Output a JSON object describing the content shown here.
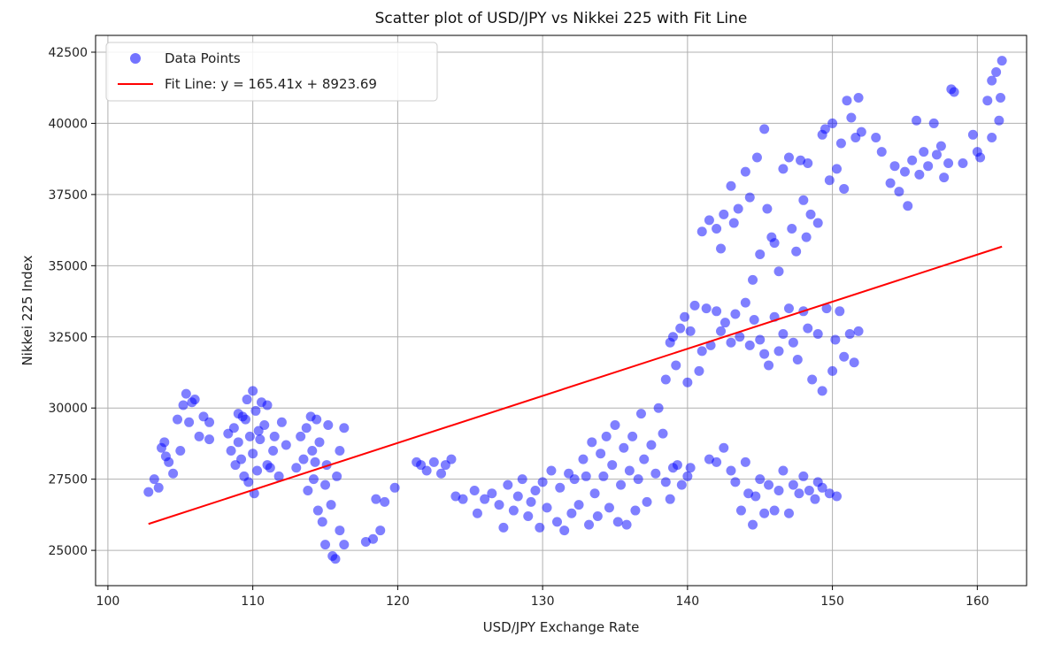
{
  "chart_data": {
    "type": "scatter",
    "title": "Scatter plot of USD/JPY vs Nikkei 225 with Fit Line",
    "xlabel": "USD/JPY Exchange Rate",
    "ylabel": "Nikkei 225 Index",
    "xlim": [
      99.15,
      163.4
    ],
    "ylim": [
      23760,
      43090
    ],
    "xticks": [
      100,
      110,
      120,
      130,
      140,
      150,
      160
    ],
    "yticks": [
      25000,
      27500,
      30000,
      32500,
      35000,
      37500,
      40000,
      42500
    ],
    "grid": true,
    "legend": {
      "placement": "top-left",
      "entries": [
        "Data Points",
        "Fit Line: y = 165.41x + 8923.69"
      ]
    },
    "colors": {
      "points": "#0000ff",
      "fit_line": "#ff0000"
    },
    "fit_line": {
      "slope": 165.41,
      "intercept": 8923.69,
      "x_range": [
        102.8,
        161.7
      ]
    },
    "series": [
      {
        "name": "Data Points",
        "points": [
          [
            102.8,
            27050
          ],
          [
            103.2,
            27500
          ],
          [
            103.5,
            27200
          ],
          [
            103.7,
            28600
          ],
          [
            103.9,
            28800
          ],
          [
            104,
            28300
          ],
          [
            104.2,
            28100
          ],
          [
            104.5,
            27700
          ],
          [
            104.8,
            29600
          ],
          [
            105,
            28500
          ],
          [
            105.2,
            30100
          ],
          [
            105.4,
            30500
          ],
          [
            105.6,
            29500
          ],
          [
            105.8,
            30200
          ],
          [
            106,
            30300
          ],
          [
            106.3,
            29000
          ],
          [
            106.6,
            29700
          ],
          [
            107,
            29500
          ],
          [
            107,
            28900
          ],
          [
            108.3,
            29100
          ],
          [
            108.5,
            28500
          ],
          [
            108.7,
            29300
          ],
          [
            109,
            28800
          ],
          [
            109,
            29800
          ],
          [
            109.2,
            28200
          ],
          [
            109.4,
            27600
          ],
          [
            109.5,
            29600
          ],
          [
            109.6,
            30300
          ],
          [
            109.8,
            29000
          ],
          [
            110,
            30600
          ],
          [
            110,
            28400
          ],
          [
            110.1,
            27000
          ],
          [
            110.2,
            29900
          ],
          [
            110.3,
            27800
          ],
          [
            110.5,
            28900
          ],
          [
            110.6,
            30200
          ],
          [
            110.8,
            29400
          ],
          [
            111,
            28000
          ],
          [
            111,
            30100
          ],
          [
            111.2,
            27900
          ],
          [
            111.5,
            29000
          ],
          [
            111.8,
            27600
          ],
          [
            112,
            29500
          ],
          [
            112.3,
            28700
          ],
          [
            109.3,
            29700
          ],
          [
            108.8,
            28000
          ],
          [
            110.4,
            29200
          ],
          [
            109.7,
            27400
          ],
          [
            111.4,
            28500
          ],
          [
            113,
            27900
          ],
          [
            113.3,
            29000
          ],
          [
            113.5,
            28200
          ],
          [
            113.7,
            29300
          ],
          [
            113.8,
            27100
          ],
          [
            114,
            29700
          ],
          [
            114.1,
            28500
          ],
          [
            114.2,
            27500
          ],
          [
            114.4,
            29600
          ],
          [
            114.5,
            26400
          ],
          [
            114.6,
            28800
          ],
          [
            114.8,
            26000
          ],
          [
            115,
            27300
          ],
          [
            115,
            25200
          ],
          [
            115.2,
            29400
          ],
          [
            115.4,
            26600
          ],
          [
            115.5,
            24800
          ],
          [
            115.7,
            24700
          ],
          [
            115.8,
            27600
          ],
          [
            116,
            25700
          ],
          [
            116,
            28500
          ],
          [
            116.3,
            25200
          ],
          [
            116.3,
            29300
          ],
          [
            114.3,
            28100
          ],
          [
            115.1,
            28000
          ],
          [
            117.8,
            25300
          ],
          [
            118.3,
            25400
          ],
          [
            118.5,
            26800
          ],
          [
            118.8,
            25700
          ],
          [
            119.1,
            26700
          ],
          [
            119.8,
            27200
          ],
          [
            121.3,
            28100
          ],
          [
            121.6,
            28000
          ],
          [
            122,
            27800
          ],
          [
            122.5,
            28100
          ],
          [
            123,
            27700
          ],
          [
            123.3,
            28000
          ],
          [
            123.7,
            28200
          ],
          [
            124,
            26900
          ],
          [
            124.5,
            26800
          ],
          [
            125.3,
            27100
          ],
          [
            125.5,
            26300
          ],
          [
            126,
            26800
          ],
          [
            126.5,
            27000
          ],
          [
            127,
            26600
          ],
          [
            127.3,
            25800
          ],
          [
            127.6,
            27300
          ],
          [
            128,
            26400
          ],
          [
            128.3,
            26900
          ],
          [
            128.6,
            27500
          ],
          [
            129,
            26200
          ],
          [
            129.2,
            26700
          ],
          [
            129.5,
            27100
          ],
          [
            129.8,
            25800
          ],
          [
            130,
            27400
          ],
          [
            130.3,
            26500
          ],
          [
            130.6,
            27800
          ],
          [
            131,
            26000
          ],
          [
            131.2,
            27200
          ],
          [
            131.5,
            25700
          ],
          [
            131.8,
            27700
          ],
          [
            132,
            26300
          ],
          [
            132.2,
            27500
          ],
          [
            132.5,
            26600
          ],
          [
            132.8,
            28200
          ],
          [
            133,
            27600
          ],
          [
            133.2,
            25900
          ],
          [
            133.4,
            28800
          ],
          [
            133.6,
            27000
          ],
          [
            133.8,
            26200
          ],
          [
            134,
            28400
          ],
          [
            134.2,
            27600
          ],
          [
            134.4,
            29000
          ],
          [
            134.6,
            26500
          ],
          [
            134.8,
            28000
          ],
          [
            135,
            29400
          ],
          [
            135.2,
            26000
          ],
          [
            135.4,
            27300
          ],
          [
            135.6,
            28600
          ],
          [
            135.8,
            25900
          ],
          [
            136,
            27800
          ],
          [
            136.2,
            29000
          ],
          [
            136.4,
            26400
          ],
          [
            136.6,
            27500
          ],
          [
            136.8,
            29800
          ],
          [
            137,
            28200
          ],
          [
            137.2,
            26700
          ],
          [
            137.5,
            28700
          ],
          [
            137.8,
            27700
          ],
          [
            138,
            30000
          ],
          [
            138.3,
            29100
          ],
          [
            138.5,
            27400
          ],
          [
            138.8,
            26800
          ],
          [
            139,
            27900
          ],
          [
            139.3,
            28000
          ],
          [
            139.6,
            27300
          ],
          [
            140,
            27600
          ],
          [
            140.2,
            27900
          ],
          [
            138.5,
            31000
          ],
          [
            138.8,
            32300
          ],
          [
            139,
            32500
          ],
          [
            139.2,
            31500
          ],
          [
            139.5,
            32800
          ],
          [
            139.8,
            33200
          ],
          [
            140,
            30900
          ],
          [
            140.2,
            32700
          ],
          [
            140.5,
            33600
          ],
          [
            140.8,
            31300
          ],
          [
            141,
            32000
          ],
          [
            141.3,
            33500
          ],
          [
            141.6,
            32200
          ],
          [
            142,
            33400
          ],
          [
            142.3,
            32700
          ],
          [
            142.6,
            33000
          ],
          [
            143,
            32300
          ],
          [
            143.3,
            33300
          ],
          [
            143.6,
            32500
          ],
          [
            144,
            33700
          ],
          [
            144.3,
            32200
          ],
          [
            144.6,
            33100
          ],
          [
            145,
            32400
          ],
          [
            145.3,
            31900
          ],
          [
            145.6,
            31500
          ],
          [
            146,
            33200
          ],
          [
            146.3,
            32000
          ],
          [
            146.6,
            32600
          ],
          [
            147,
            33500
          ],
          [
            147.3,
            32300
          ],
          [
            147.6,
            31700
          ],
          [
            148,
            33400
          ],
          [
            148.3,
            32800
          ],
          [
            148.6,
            31000
          ],
          [
            149,
            32600
          ],
          [
            149.3,
            30600
          ],
          [
            149.6,
            33500
          ],
          [
            150,
            31300
          ],
          [
            150.2,
            32400
          ],
          [
            150.5,
            33400
          ],
          [
            150.8,
            31800
          ],
          [
            151.2,
            32600
          ],
          [
            151.5,
            31600
          ],
          [
            151.8,
            32700
          ],
          [
            141.5,
            28200
          ],
          [
            142,
            28100
          ],
          [
            142.5,
            28600
          ],
          [
            143,
            27800
          ],
          [
            143.3,
            27400
          ],
          [
            143.7,
            26400
          ],
          [
            144,
            28100
          ],
          [
            144.2,
            27000
          ],
          [
            144.5,
            25900
          ],
          [
            144.7,
            26900
          ],
          [
            145,
            27500
          ],
          [
            145.3,
            26300
          ],
          [
            145.6,
            27300
          ],
          [
            146,
            26400
          ],
          [
            146.3,
            27100
          ],
          [
            146.6,
            27800
          ],
          [
            147,
            26300
          ],
          [
            147.3,
            27300
          ],
          [
            147.7,
            27000
          ],
          [
            148,
            27600
          ],
          [
            148.4,
            27100
          ],
          [
            148.8,
            26800
          ],
          [
            149,
            27400
          ],
          [
            149.3,
            27200
          ],
          [
            149.8,
            27000
          ],
          [
            150.3,
            26900
          ],
          [
            141,
            36200
          ],
          [
            141.5,
            36600
          ],
          [
            142,
            36300
          ],
          [
            142.3,
            35600
          ],
          [
            142.5,
            36800
          ],
          [
            143,
            37800
          ],
          [
            143.2,
            36500
          ],
          [
            143.5,
            37000
          ],
          [
            144,
            38300
          ],
          [
            144.3,
            37400
          ],
          [
            144.5,
            34500
          ],
          [
            144.8,
            38800
          ],
          [
            145,
            35400
          ],
          [
            145.3,
            39800
          ],
          [
            145.5,
            37000
          ],
          [
            145.8,
            36000
          ],
          [
            146,
            35800
          ],
          [
            146.3,
            34800
          ],
          [
            146.6,
            38400
          ],
          [
            147,
            38800
          ],
          [
            147.2,
            36300
          ],
          [
            147.5,
            35500
          ],
          [
            147.8,
            38700
          ],
          [
            148,
            37300
          ],
          [
            148.2,
            36000
          ],
          [
            148.5,
            36800
          ],
          [
            149,
            36500
          ],
          [
            149.3,
            39600
          ],
          [
            148.3,
            38600
          ],
          [
            149.5,
            39800
          ],
          [
            149.8,
            38000
          ],
          [
            150,
            40000
          ],
          [
            150.3,
            38400
          ],
          [
            150.6,
            39300
          ],
          [
            150.8,
            37700
          ],
          [
            151,
            40800
          ],
          [
            151.3,
            40200
          ],
          [
            151.6,
            39500
          ],
          [
            151.8,
            40900
          ],
          [
            152,
            39700
          ],
          [
            153,
            39500
          ],
          [
            153.4,
            39000
          ],
          [
            154,
            37900
          ],
          [
            154.3,
            38500
          ],
          [
            154.6,
            37600
          ],
          [
            155,
            38300
          ],
          [
            155.2,
            37100
          ],
          [
            155.5,
            38700
          ],
          [
            155.8,
            40100
          ],
          [
            156,
            38200
          ],
          [
            156.3,
            39000
          ],
          [
            156.6,
            38500
          ],
          [
            157,
            40000
          ],
          [
            157.2,
            38900
          ],
          [
            157.5,
            39200
          ],
          [
            157.7,
            38100
          ],
          [
            158,
            38600
          ],
          [
            158.2,
            41200
          ],
          [
            158.4,
            41100
          ],
          [
            159,
            38600
          ],
          [
            159.7,
            39600
          ],
          [
            160,
            39000
          ],
          [
            160.2,
            38800
          ],
          [
            160.7,
            40800
          ],
          [
            161,
            39500
          ],
          [
            161,
            41500
          ],
          [
            161.3,
            41800
          ],
          [
            161.5,
            40100
          ],
          [
            161.6,
            40900
          ],
          [
            161.7,
            42200
          ]
        ]
      }
    ]
  }
}
